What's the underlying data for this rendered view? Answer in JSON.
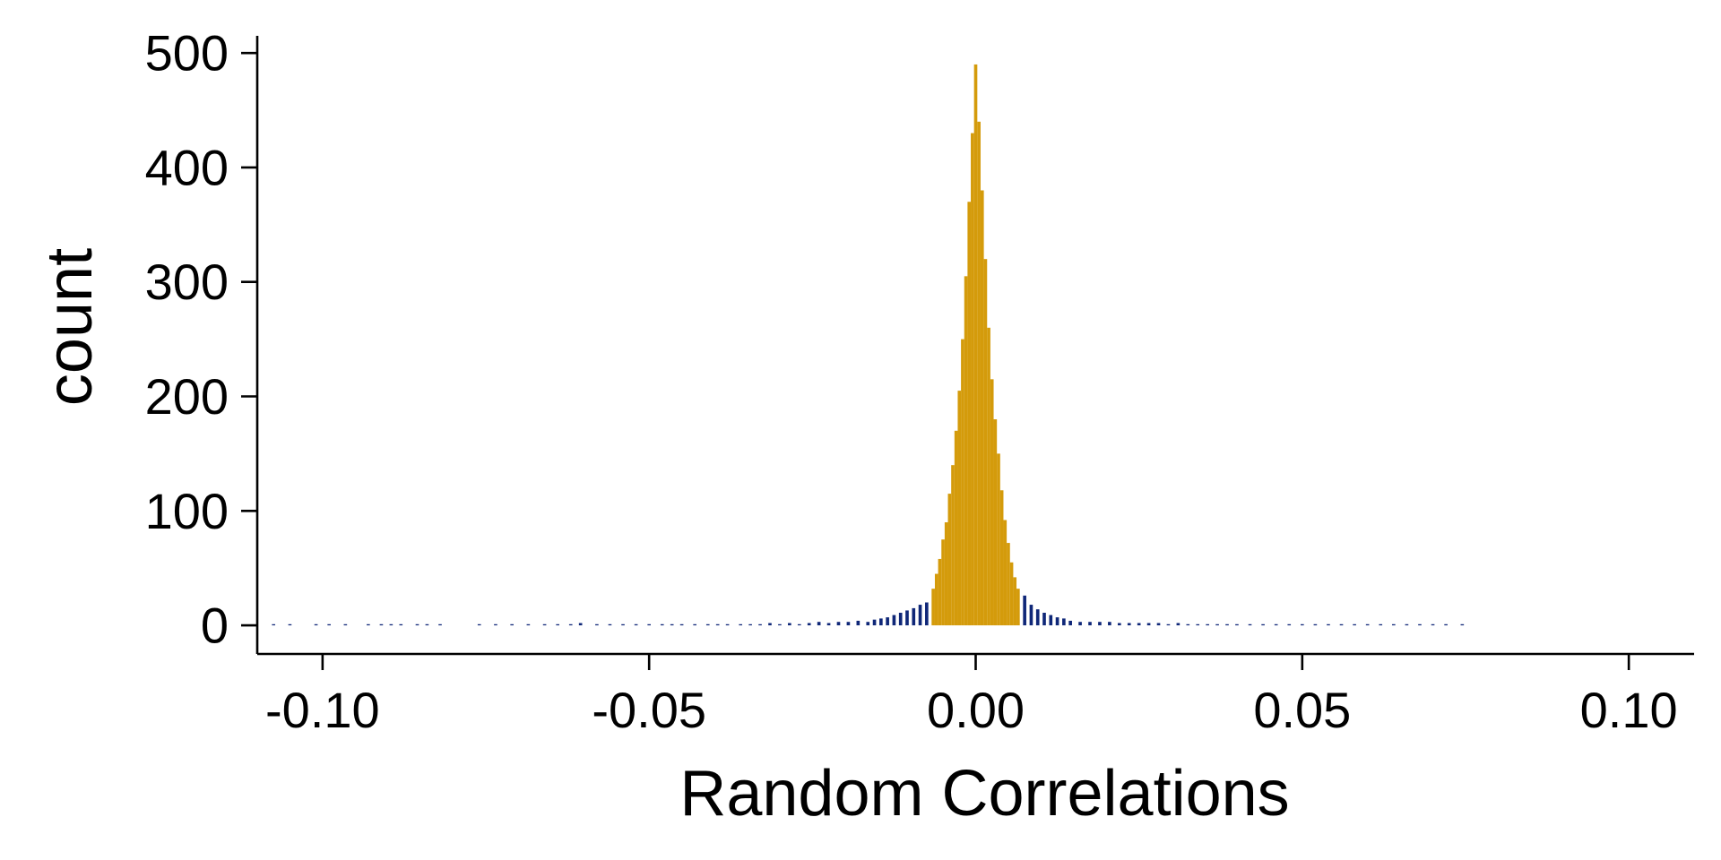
{
  "chart_data": {
    "type": "bar",
    "subtype": "histogram",
    "title": "",
    "xlabel": "Random Correlations",
    "ylabel": "count",
    "xlim": [
      -0.11,
      0.11
    ],
    "ylim": [
      -25,
      515
    ],
    "xticks": [
      -0.1,
      -0.05,
      0.0,
      0.05,
      0.1
    ],
    "xtick_labels": [
      "-0.10",
      "-0.05",
      "0.00",
      "0.05",
      "0.10"
    ],
    "yticks": [
      0,
      100,
      200,
      300,
      400,
      500
    ],
    "ytick_labels": [
      "0",
      "100",
      "200",
      "300",
      "400",
      "500"
    ],
    "grid": false,
    "colors": {
      "central": "#D49B0B",
      "tail": "#0F2778",
      "axis": "#000000"
    },
    "series": [
      {
        "color_key": "tail",
        "bins": [
          [
            -0.1075,
            1
          ],
          [
            -0.105,
            1
          ],
          [
            -0.101,
            1
          ],
          [
            -0.099,
            1
          ],
          [
            -0.0965,
            1
          ],
          [
            -0.093,
            1
          ],
          [
            -0.091,
            1
          ],
          [
            -0.0895,
            1
          ],
          [
            -0.088,
            1
          ],
          [
            -0.0855,
            1
          ],
          [
            -0.084,
            1
          ],
          [
            -0.082,
            1
          ],
          [
            -0.076,
            1
          ],
          [
            -0.0735,
            1
          ],
          [
            -0.071,
            1
          ],
          [
            -0.0685,
            1
          ],
          [
            -0.066,
            1
          ],
          [
            -0.064,
            1
          ],
          [
            -0.062,
            1
          ],
          [
            -0.0605,
            2
          ],
          [
            -0.058,
            1
          ],
          [
            -0.056,
            1
          ],
          [
            -0.054,
            1
          ],
          [
            -0.052,
            1
          ],
          [
            -0.05,
            1
          ],
          [
            -0.048,
            1
          ],
          [
            -0.0465,
            1
          ],
          [
            -0.045,
            1
          ],
          [
            -0.043,
            1
          ],
          [
            -0.041,
            1
          ],
          [
            -0.0395,
            1
          ],
          [
            -0.038,
            1
          ],
          [
            -0.036,
            1
          ],
          [
            -0.0345,
            1
          ],
          [
            -0.033,
            1
          ],
          [
            -0.0315,
            2
          ],
          [
            -0.03,
            1
          ],
          [
            -0.0285,
            2
          ],
          [
            -0.027,
            1
          ],
          [
            -0.0255,
            2
          ],
          [
            -0.024,
            3
          ],
          [
            -0.0225,
            2
          ],
          [
            -0.021,
            3
          ],
          [
            -0.0195,
            3
          ],
          [
            -0.018,
            4
          ],
          [
            -0.0165,
            3
          ],
          [
            -0.0155,
            5
          ],
          [
            -0.0145,
            6
          ],
          [
            -0.0135,
            7
          ],
          [
            -0.0125,
            9
          ],
          [
            -0.0115,
            11
          ],
          [
            -0.0105,
            13
          ],
          [
            -0.0095,
            15
          ],
          [
            -0.0085,
            18
          ],
          [
            -0.0075,
            20
          ],
          [
            0.0075,
            26
          ],
          [
            0.0085,
            18
          ],
          [
            0.0095,
            14
          ],
          [
            0.0105,
            11
          ],
          [
            0.0115,
            9
          ],
          [
            0.0125,
            7
          ],
          [
            0.0135,
            6
          ],
          [
            0.0145,
            4
          ],
          [
            0.016,
            3
          ],
          [
            0.0175,
            3
          ],
          [
            0.019,
            3
          ],
          [
            0.0205,
            3
          ],
          [
            0.022,
            2
          ],
          [
            0.0235,
            2
          ],
          [
            0.025,
            2
          ],
          [
            0.0265,
            2
          ],
          [
            0.028,
            2
          ],
          [
            0.0295,
            1
          ],
          [
            0.031,
            2
          ],
          [
            0.0325,
            1
          ],
          [
            0.034,
            1
          ],
          [
            0.0355,
            1
          ],
          [
            0.037,
            1
          ],
          [
            0.0385,
            1
          ],
          [
            0.04,
            1
          ],
          [
            0.042,
            1
          ],
          [
            0.044,
            1
          ],
          [
            0.046,
            1
          ],
          [
            0.048,
            1
          ],
          [
            0.05,
            1
          ],
          [
            0.052,
            1
          ],
          [
            0.054,
            1
          ],
          [
            0.056,
            1
          ],
          [
            0.058,
            1
          ],
          [
            0.06,
            1
          ],
          [
            0.062,
            1
          ],
          [
            0.064,
            1
          ],
          [
            0.066,
            1
          ],
          [
            0.068,
            1
          ],
          [
            0.07,
            1
          ],
          [
            0.072,
            1
          ],
          [
            0.0745,
            1
          ]
        ]
      },
      {
        "color_key": "central",
        "bins": [
          [
            -0.0065,
            32
          ],
          [
            -0.006,
            45
          ],
          [
            -0.0055,
            58
          ],
          [
            -0.005,
            75
          ],
          [
            -0.0045,
            90
          ],
          [
            -0.004,
            115
          ],
          [
            -0.0035,
            140
          ],
          [
            -0.003,
            170
          ],
          [
            -0.0025,
            205
          ],
          [
            -0.002,
            250
          ],
          [
            -0.0015,
            305
          ],
          [
            -0.001,
            370
          ],
          [
            -0.0005,
            430
          ],
          [
            0.0,
            490
          ],
          [
            0.0005,
            440
          ],
          [
            0.001,
            380
          ],
          [
            0.0015,
            320
          ],
          [
            0.002,
            260
          ],
          [
            0.0025,
            215
          ],
          [
            0.003,
            180
          ],
          [
            0.0035,
            150
          ],
          [
            0.004,
            118
          ],
          [
            0.0045,
            92
          ],
          [
            0.005,
            72
          ],
          [
            0.0055,
            55
          ],
          [
            0.006,
            42
          ],
          [
            0.0065,
            32
          ]
        ]
      }
    ]
  }
}
